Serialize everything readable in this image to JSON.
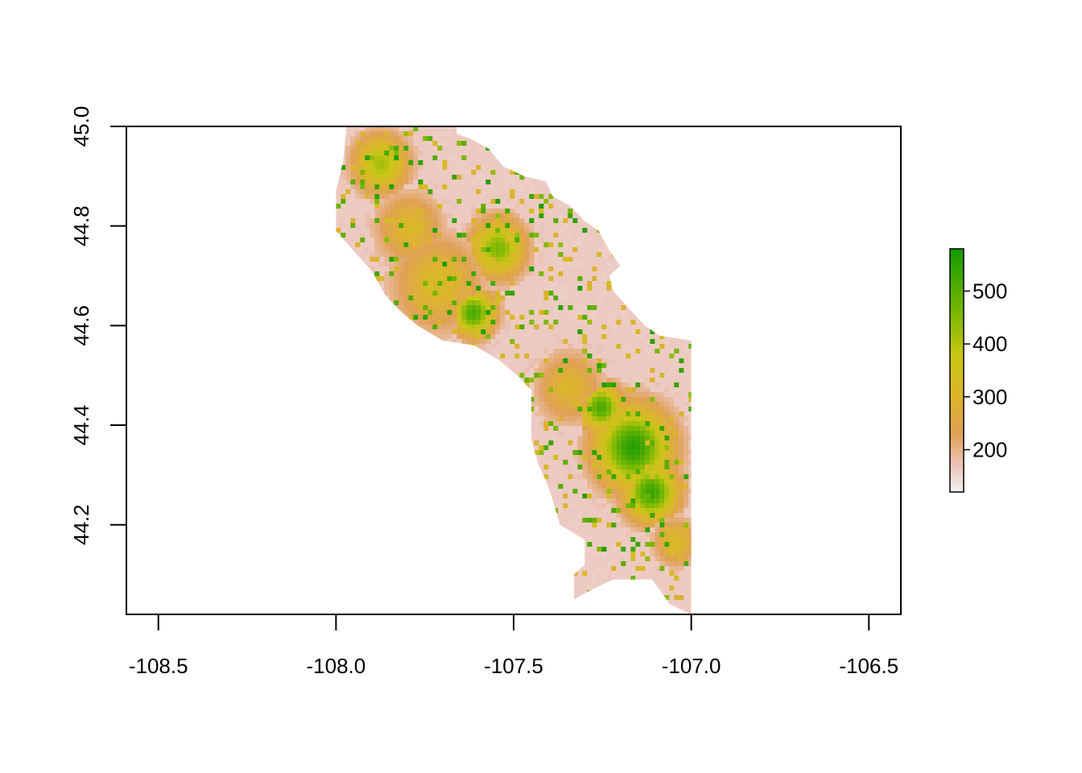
{
  "chart_data": {
    "type": "heatmap",
    "title": "",
    "xlabel": "",
    "ylabel": "",
    "xlim": [
      -108.59,
      -106.41
    ],
    "ylim": [
      44.02,
      45.0
    ],
    "x_ticks": [
      -108.5,
      -108.0,
      -107.5,
      -107.0,
      -106.5
    ],
    "x_tick_labels": [
      "-108.5",
      "-108.0",
      "-107.5",
      "-107.0",
      "-106.5"
    ],
    "y_ticks": [
      44.2,
      44.4,
      44.6,
      44.8,
      45.0
    ],
    "y_tick_labels": [
      "44.2",
      "44.4",
      "44.6",
      "44.8",
      "45.0"
    ],
    "grid": false,
    "legend": {
      "placement": "right",
      "range": [
        120,
        580
      ],
      "ticks": [
        200,
        300,
        400,
        500
      ],
      "tick_labels": [
        "200",
        "300",
        "400",
        "500"
      ],
      "color_stops": [
        {
          "value": 120,
          "color": "#f2f2f2"
        },
        {
          "value": 170,
          "color": "#ecc5bc"
        },
        {
          "value": 230,
          "color": "#e0a055"
        },
        {
          "value": 300,
          "color": "#dcb42a"
        },
        {
          "value": 380,
          "color": "#c9c614"
        },
        {
          "value": 460,
          "color": "#7ab800"
        },
        {
          "value": 580,
          "color": "#149b00"
        }
      ]
    },
    "raster_extent": {
      "outline_lonlat": [
        [
          -107.97,
          45.0
        ],
        [
          -107.66,
          45.0
        ],
        [
          -107.66,
          44.985
        ],
        [
          -107.62,
          44.975
        ],
        [
          -107.57,
          44.955
        ],
        [
          -107.53,
          44.92
        ],
        [
          -107.47,
          44.9
        ],
        [
          -107.41,
          44.89
        ],
        [
          -107.39,
          44.86
        ],
        [
          -107.34,
          44.84
        ],
        [
          -107.3,
          44.81
        ],
        [
          -107.26,
          44.79
        ],
        [
          -107.23,
          44.75
        ],
        [
          -107.2,
          44.72
        ],
        [
          -107.23,
          44.7
        ],
        [
          -107.22,
          44.67
        ],
        [
          -107.17,
          44.63
        ],
        [
          -107.13,
          44.6
        ],
        [
          -107.09,
          44.58
        ],
        [
          -107.0,
          44.57
        ],
        [
          -107.0,
          44.02
        ],
        [
          -107.06,
          44.04
        ],
        [
          -107.11,
          44.09
        ],
        [
          -107.22,
          44.09
        ],
        [
          -107.28,
          44.07
        ],
        [
          -107.33,
          44.05
        ],
        [
          -107.33,
          44.1
        ],
        [
          -107.3,
          44.12
        ],
        [
          -107.3,
          44.17
        ],
        [
          -107.37,
          44.2
        ],
        [
          -107.39,
          44.25
        ],
        [
          -107.41,
          44.29
        ],
        [
          -107.43,
          44.32
        ],
        [
          -107.45,
          44.37
        ],
        [
          -107.45,
          44.47
        ],
        [
          -107.49,
          44.5
        ],
        [
          -107.54,
          44.53
        ],
        [
          -107.61,
          44.56
        ],
        [
          -107.7,
          44.57
        ],
        [
          -107.77,
          44.6
        ],
        [
          -107.82,
          44.63
        ],
        [
          -107.86,
          44.66
        ],
        [
          -107.9,
          44.71
        ],
        [
          -107.95,
          44.75
        ],
        [
          -108.0,
          44.79
        ],
        [
          -108.0,
          44.87
        ],
        [
          -107.98,
          44.93
        ],
        [
          -107.97,
          45.0
        ]
      ],
      "hotspots": [
        {
          "lon": -107.17,
          "lat": 44.36,
          "r": 0.07,
          "value": 560
        },
        {
          "lon": -107.12,
          "lat": 44.27,
          "r": 0.05,
          "value": 540
        },
        {
          "lon": -107.26,
          "lat": 44.44,
          "r": 0.04,
          "value": 520
        },
        {
          "lon": -107.62,
          "lat": 44.63,
          "r": 0.04,
          "value": 520
        },
        {
          "lon": -107.55,
          "lat": 44.76,
          "r": 0.05,
          "value": 460
        },
        {
          "lon": -107.72,
          "lat": 44.69,
          "r": 0.08,
          "value": 320
        },
        {
          "lon": -107.8,
          "lat": 44.8,
          "r": 0.06,
          "value": 310
        },
        {
          "lon": -107.35,
          "lat": 44.48,
          "r": 0.06,
          "value": 300
        },
        {
          "lon": -107.88,
          "lat": 44.93,
          "r": 0.05,
          "value": 420
        },
        {
          "lon": -107.05,
          "lat": 44.17,
          "r": 0.04,
          "value": 320
        }
      ]
    }
  }
}
